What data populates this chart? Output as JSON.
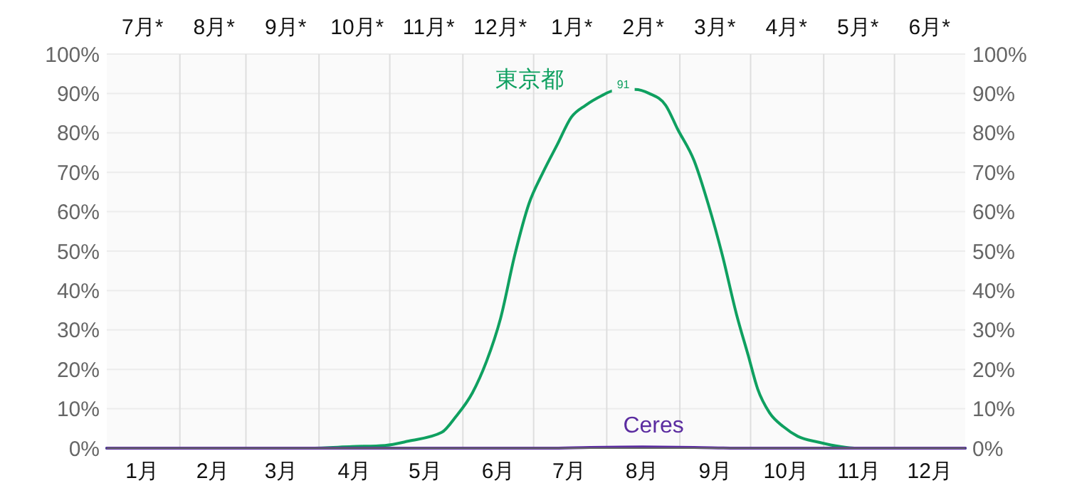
{
  "chart_data": {
    "type": "line",
    "xlim": [
      "--01-01",
      "--12-31"
    ],
    "xticks": [
      {
        "value": "--01-16",
        "label": "1月"
      },
      {
        "value": "--02-15",
        "label": "2月"
      },
      {
        "value": "--03-16",
        "label": "3月"
      },
      {
        "value": "--04-16",
        "label": "4月"
      },
      {
        "value": "--05-16",
        "label": "5月"
      },
      {
        "value": "--06-16",
        "label": "6月"
      },
      {
        "value": "--07-16",
        "label": "7月"
      },
      {
        "value": "--08-16",
        "label": "8月"
      },
      {
        "value": "--09-16",
        "label": "9月"
      },
      {
        "value": "--10-16",
        "label": "10月"
      },
      {
        "value": "--11-16",
        "label": "11月"
      },
      {
        "value": "--12-16",
        "label": "12月"
      },
      {
        "value": "--02-01",
        "label": null
      },
      {
        "value": "--03-01",
        "label": null
      },
      {
        "value": "--04-01",
        "label": null
      },
      {
        "value": "--05-01",
        "label": null
      },
      {
        "value": "--06-01",
        "label": null
      },
      {
        "value": "--07-01",
        "label": null
      },
      {
        "value": "--08-01",
        "label": null
      },
      {
        "value": "--09-01",
        "label": null
      },
      {
        "value": "--10-01",
        "label": null
      },
      {
        "value": "--11-01",
        "label": null
      },
      {
        "value": "--12-01",
        "label": null
      }
    ],
    "ylim": [
      0,
      100
    ],
    "yticks": [
      {
        "value": 0,
        "label": "0%"
      },
      {
        "value": 10,
        "label": "10%"
      },
      {
        "value": 20,
        "label": "20%"
      },
      {
        "value": 30,
        "label": "30%"
      },
      {
        "value": 40,
        "label": "40%"
      },
      {
        "value": 50,
        "label": "50%"
      },
      {
        "value": 60,
        "label": "60%"
      },
      {
        "value": 70,
        "label": "70%"
      },
      {
        "value": 80,
        "label": "80%"
      },
      {
        "value": 90,
        "label": "90%"
      },
      {
        "value": 100,
        "label": "100%"
      }
    ],
    "y2lim": [
      0,
      100
    ],
    "y2ticks": [
      {
        "value": 0,
        "label": "0%"
      },
      {
        "value": 10,
        "label": "10%"
      },
      {
        "value": 20,
        "label": "20%"
      },
      {
        "value": 30,
        "label": "30%"
      },
      {
        "value": 40,
        "label": "40%"
      },
      {
        "value": 50,
        "label": "50%"
      },
      {
        "value": 60,
        "label": "60%"
      },
      {
        "value": 70,
        "label": "70%"
      },
      {
        "value": 80,
        "label": "80%"
      },
      {
        "value": 90,
        "label": "90%"
      },
      {
        "value": 100,
        "label": "100%"
      }
    ],
    "grid": true,
    "series": [
      {
        "name": "東京都",
        "color": "#0fa060",
        "x": [
          "--01-01",
          "--03-16",
          "--03-28",
          "--04-15",
          "--04-29",
          "--05-09",
          "--05-23",
          "--05-29",
          "--06-05",
          "--06-11",
          "--06-17",
          "--06-23",
          "--06-29",
          "--07-05",
          "--07-11",
          "--07-17",
          "--07-23",
          "--07-30",
          "--08-03",
          "--08-08",
          "--08-13",
          "--08-19",
          "--08-26",
          "--08-31",
          "--09-07",
          "--09-13",
          "--09-19",
          "--09-25",
          "--09-30",
          "--10-04",
          "--10-09",
          "--10-15",
          "--10-21",
          "--10-30",
          "--11-08",
          "--11-14",
          "--12-31"
        ],
        "values": [
          0,
          0,
          0,
          0.4,
          0.7,
          1.8,
          4,
          8,
          14,
          22,
          33,
          49,
          62,
          70,
          77,
          84,
          87,
          89.5,
          90.6,
          91,
          91,
          90,
          87,
          81,
          73,
          62,
          49,
          34,
          23.5,
          15,
          9,
          5.4,
          3,
          1.5,
          0.4,
          0,
          0
        ]
      },
      {
        "name": "Ceres",
        "color": "#5b2ca0",
        "x": [
          "--01-01",
          "--07-07",
          "--07-25",
          "--08-16",
          "--09-07",
          "--09-25",
          "--12-31"
        ],
        "values": [
          0,
          0,
          0.2,
          0.3,
          0.2,
          0,
          0
        ]
      }
    ],
    "annotations": [
      "7月*",
      "8月*",
      "9月*",
      "10月*",
      "11月*",
      "12月*",
      "1月*",
      "2月*",
      "3月*",
      "4月*",
      "5月*",
      "6月*",
      {
        "text": "91",
        "x": "--08-08",
        "y": 91
      }
    ]
  }
}
